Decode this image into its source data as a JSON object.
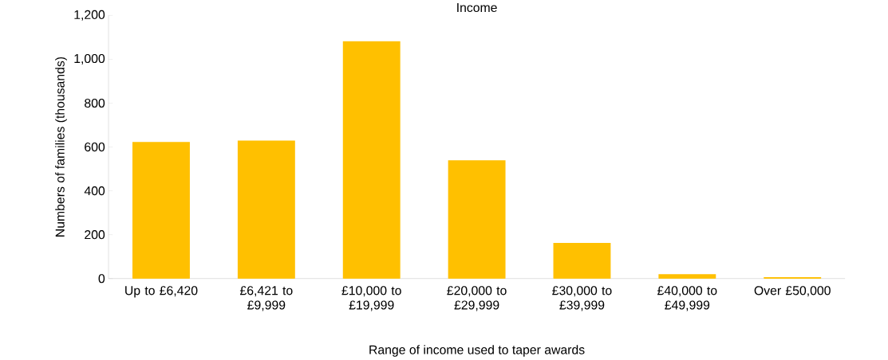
{
  "chart_data": {
    "type": "bar",
    "title": "Income",
    "categories": [
      "Up to £6,420",
      "£6,421 to £9,999",
      "£10,000 to £19,999",
      "£20,000 to £29,999",
      "£30,000 to £39,999",
      "£40,000 to £49,999",
      "Over £50,000"
    ],
    "values": [
      620,
      627,
      1080,
      537,
      160,
      17,
      4
    ],
    "color": "#ffc000",
    "ylim": [
      0,
      1200
    ],
    "yticks": [
      {
        "value": 0,
        "label": "0"
      },
      {
        "value": 200,
        "label": "200"
      },
      {
        "value": 400,
        "label": "400"
      },
      {
        "value": 600,
        "label": "600"
      },
      {
        "value": 800,
        "label": "800"
      },
      {
        "value": 1000,
        "label": "1,000"
      },
      {
        "value": 1200,
        "label": "1,200"
      }
    ],
    "xlabel": "Range of income used to taper awards",
    "ylabel": "Numbers of families (thousands)",
    "grid": false
  }
}
